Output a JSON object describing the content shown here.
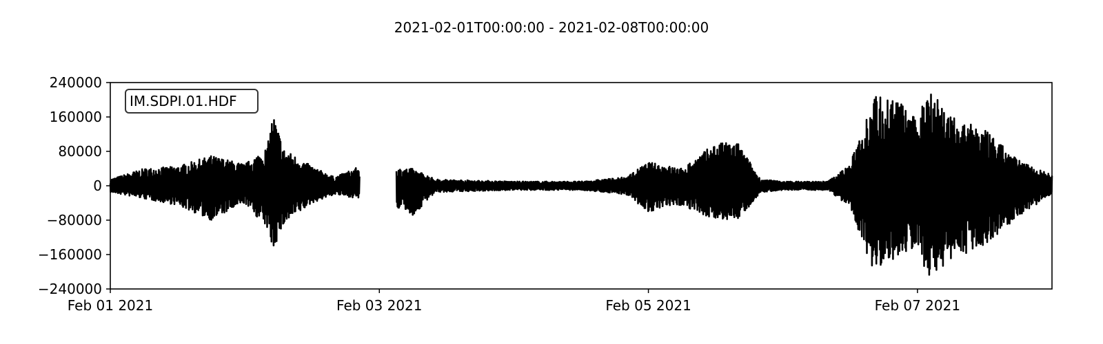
{
  "chart_data": {
    "type": "line",
    "title": "2021-02-01T00:00:00  -  2021-02-08T00:00:00",
    "xlabel": "",
    "ylabel": "",
    "x_range": [
      "2021-02-01T00:00:00",
      "2021-02-08T00:00:00"
    ],
    "ylim": [
      -240000,
      240000
    ],
    "y_ticks": [
      240000,
      160000,
      80000,
      0,
      -80000,
      -160000,
      -240000
    ],
    "y_tick_labels": [
      "240000",
      "160000",
      "80000",
      "0",
      "−80000",
      "−160000",
      "−240000"
    ],
    "x_ticks": [
      "2021-02-01",
      "2021-02-03",
      "2021-02-05",
      "2021-02-07"
    ],
    "x_tick_labels": [
      "Feb 01 2021",
      "Feb 03 2021",
      "Feb 05 2021",
      "Feb 07 2021"
    ],
    "grid": false,
    "legend_placement": "top-left",
    "line_color": "#000000",
    "series": [
      {
        "name": "IM.SDPI.01.HDF",
        "gap": [
          "2021-02-02T20:30:00",
          "2021-02-03T03:00:00"
        ],
        "envelope": [
          {
            "x": "2021-02-01T00:00:00",
            "upper": 15000,
            "lower": -15000
          },
          {
            "x": "2021-02-01T06:00:00",
            "upper": 40000,
            "lower": -30000
          },
          {
            "x": "2021-02-01T12:00:00",
            "upper": 45000,
            "lower": -45000
          },
          {
            "x": "2021-02-01T18:00:00",
            "upper": 70000,
            "lower": -80000
          },
          {
            "x": "2021-02-02T00:00:00",
            "upper": 50000,
            "lower": -40000
          },
          {
            "x": "2021-02-02T04:00:00",
            "upper": 90000,
            "lower": -100000
          },
          {
            "x": "2021-02-02T05:00:00",
            "upper": 170000,
            "lower": -150000
          },
          {
            "x": "2021-02-02T07:00:00",
            "upper": 85000,
            "lower": -90000
          },
          {
            "x": "2021-02-02T12:00:00",
            "upper": 45000,
            "lower": -40000
          },
          {
            "x": "2021-02-02T16:00:00",
            "upper": 20000,
            "lower": -20000
          },
          {
            "x": "2021-02-02T20:30:00",
            "upper": 45000,
            "lower": -30000
          },
          {
            "x": "2021-02-03T03:00:00",
            "upper": 40000,
            "lower": -50000
          },
          {
            "x": "2021-02-03T06:00:00",
            "upper": 40000,
            "lower": -70000
          },
          {
            "x": "2021-02-03T10:00:00",
            "upper": 15000,
            "lower": -15000
          },
          {
            "x": "2021-02-04T00:00:00",
            "upper": 10000,
            "lower": -10000
          },
          {
            "x": "2021-02-04T12:00:00",
            "upper": 10000,
            "lower": -10000
          },
          {
            "x": "2021-02-04T20:00:00",
            "upper": 20000,
            "lower": -20000
          },
          {
            "x": "2021-02-05T00:00:00",
            "upper": 55000,
            "lower": -60000
          },
          {
            "x": "2021-02-05T06:00:00",
            "upper": 40000,
            "lower": -45000
          },
          {
            "x": "2021-02-05T12:00:00",
            "upper": 100000,
            "lower": -80000
          },
          {
            "x": "2021-02-05T16:00:00",
            "upper": 100000,
            "lower": -80000
          },
          {
            "x": "2021-02-05T20:00:00",
            "upper": 15000,
            "lower": -15000
          },
          {
            "x": "2021-02-06T00:00:00",
            "upper": 10000,
            "lower": -10000
          },
          {
            "x": "2021-02-06T08:00:00",
            "upper": 10000,
            "lower": -10000
          },
          {
            "x": "2021-02-06T12:00:00",
            "upper": 50000,
            "lower": -50000
          },
          {
            "x": "2021-02-06T16:00:00",
            "upper": 210000,
            "lower": -195000
          },
          {
            "x": "2021-02-06T20:00:00",
            "upper": 210000,
            "lower": -170000
          },
          {
            "x": "2021-02-07T00:00:00",
            "upper": 150000,
            "lower": -140000
          },
          {
            "x": "2021-02-07T02:00:00",
            "upper": 245000,
            "lower": -220000
          },
          {
            "x": "2021-02-07T06:00:00",
            "upper": 160000,
            "lower": -170000
          },
          {
            "x": "2021-02-07T12:00:00",
            "upper": 130000,
            "lower": -140000
          },
          {
            "x": "2021-02-07T18:00:00",
            "upper": 60000,
            "lower": -70000
          },
          {
            "x": "2021-02-08T00:00:00",
            "upper": 25000,
            "lower": -20000
          }
        ]
      }
    ]
  }
}
